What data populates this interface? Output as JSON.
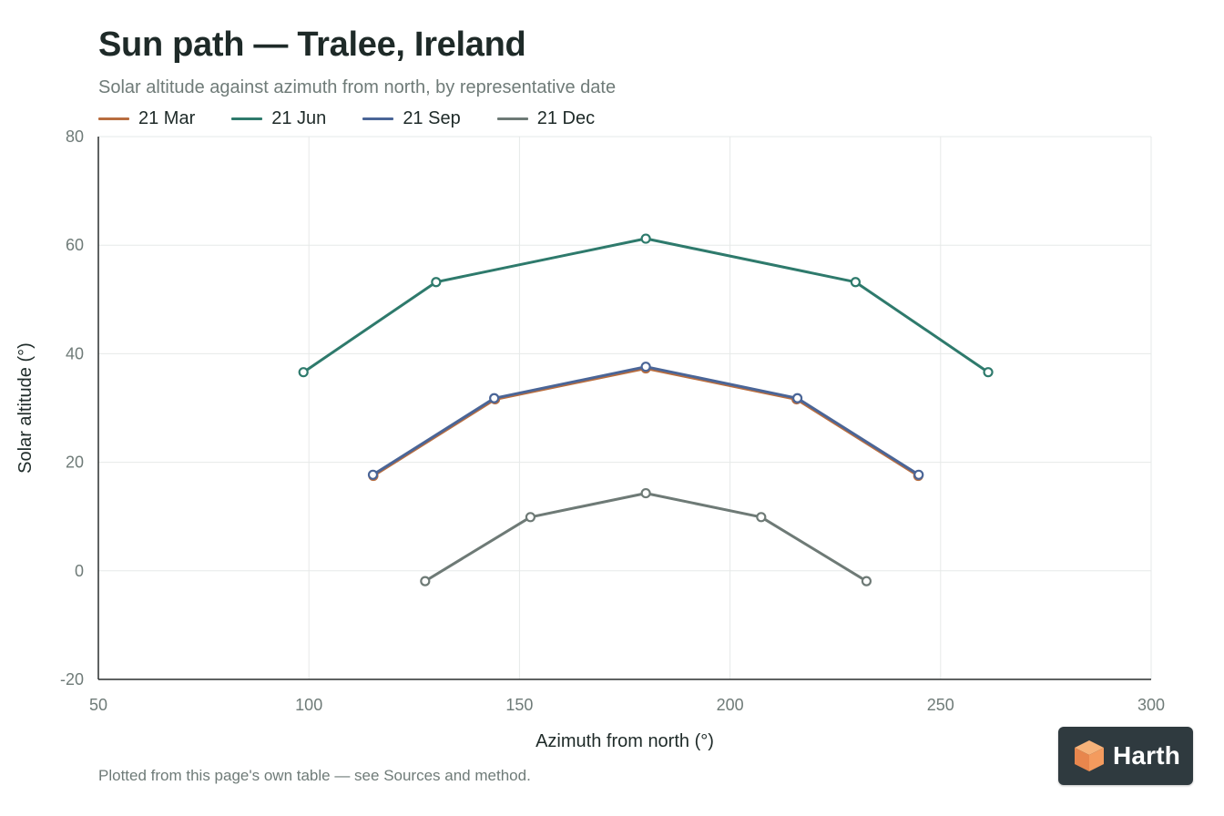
{
  "title": "Sun path — Tralee, Ireland",
  "subtitle": "Solar altitude against azimuth from north, by representative date",
  "footnote": "Plotted from this page's own table — see Sources and method.",
  "logo": {
    "text": "Harth",
    "icon": "cube-logo-icon"
  },
  "colors": {
    "mar": "#b86d3f",
    "jun": "#2e7a6c",
    "sep": "#4a6597",
    "dec": "#6e7a76",
    "grid": "#e6e9e8",
    "axis": "#2a2f2e"
  },
  "chart_data": {
    "type": "line",
    "title": "Sun path — Tralee, Ireland",
    "subtitle": "Solar altitude against azimuth from north, by representative date",
    "xlabel": "Azimuth from north (°)",
    "ylabel": "Solar altitude (°)",
    "xlim": [
      50,
      300
    ],
    "ylim": [
      -20,
      80
    ],
    "xticks": [
      50,
      100,
      150,
      200,
      250,
      300
    ],
    "yticks": [
      -20,
      0,
      20,
      40,
      60,
      80
    ],
    "grid": true,
    "legend_position": "top-left",
    "series": [
      {
        "name": "21 Mar",
        "color": "#b86d3f",
        "x": [
          115.3,
          144.2,
          180,
          215.8,
          244.7
        ],
        "y": [
          17.5,
          31.6,
          37.3,
          31.6,
          17.5
        ]
      },
      {
        "name": "21 Jun",
        "color": "#2e7a6c",
        "x": [
          98.7,
          130.2,
          180,
          229.8,
          261.3
        ],
        "y": [
          36.6,
          53.2,
          61.2,
          53.2,
          36.6
        ]
      },
      {
        "name": "21 Sep",
        "color": "#4a6597",
        "x": [
          115.2,
          144.0,
          180,
          216.0,
          244.8
        ],
        "y": [
          17.7,
          31.8,
          37.6,
          31.8,
          17.7
        ]
      },
      {
        "name": "21 Dec",
        "color": "#6e7a76",
        "x": [
          127.6,
          152.6,
          180,
          207.4,
          232.4
        ],
        "y": [
          -1.9,
          9.9,
          14.3,
          9.9,
          -1.9
        ]
      }
    ]
  }
}
